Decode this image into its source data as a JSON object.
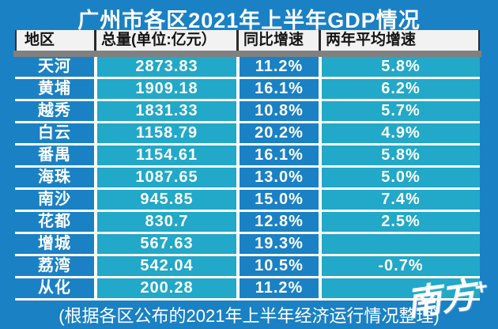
{
  "title": "广州市各区2021年上半年GDP情况",
  "table": {
    "columns": [
      "地区",
      "总量(单位:亿元）",
      "同比增速",
      "两年平均增速"
    ],
    "rows": [
      {
        "region": "天河",
        "total": "2873.83",
        "yoy": "11.2%",
        "two_year_avg": "5.8%"
      },
      {
        "region": "黄埔",
        "total": "1909.18",
        "yoy": "16.1%",
        "two_year_avg": "6.2%"
      },
      {
        "region": "越秀",
        "total": "1831.33",
        "yoy": "10.8%",
        "two_year_avg": "5.7%"
      },
      {
        "region": "白云",
        "total": "1158.79",
        "yoy": "20.2%",
        "two_year_avg": "4.9%"
      },
      {
        "region": "番禺",
        "total": "1154.61",
        "yoy": "16.1%",
        "two_year_avg": "5.8%"
      },
      {
        "region": "海珠",
        "total": "1087.65",
        "yoy": "13.0%",
        "two_year_avg": "5.0%"
      },
      {
        "region": "南沙",
        "total": "945.85",
        "yoy": "15.0%",
        "two_year_avg": "7.4%"
      },
      {
        "region": "花都",
        "total": "830.7",
        "yoy": "12.8%",
        "two_year_avg": "2.5%"
      },
      {
        "region": "增城",
        "total": "567.63",
        "yoy": "19.3%",
        "two_year_avg": ""
      },
      {
        "region": "荔湾",
        "total": "542.04",
        "yoy": "10.5%",
        "two_year_avg": "-0.7%"
      },
      {
        "region": "从化",
        "total": "200.28",
        "yoy": "11.2%",
        "two_year_avg": ""
      }
    ]
  },
  "footer_note": "(根据各区公布的2021年上半年经济运行情况整理)",
  "watermark": {
    "text": "南方",
    "plus": "+"
  },
  "colors": {
    "background_blue": "#1a81c5",
    "cell_teal": "#22a8c8",
    "header_bg": "#f2f2f2",
    "header_text": "#141414",
    "divider_gray": "#808080",
    "body_text": "#ffffff"
  },
  "chart_data": {
    "type": "table",
    "title": "广州市各区2021年上半年GDP情况",
    "columns": [
      "地区",
      "总量(单位:亿元）",
      "同比增速",
      "两年平均增速"
    ],
    "rows": [
      [
        "天河",
        2873.83,
        "11.2%",
        "5.8%"
      ],
      [
        "黄埔",
        1909.18,
        "16.1%",
        "6.2%"
      ],
      [
        "越秀",
        1831.33,
        "10.8%",
        "5.7%"
      ],
      [
        "白云",
        1158.79,
        "20.2%",
        "4.9%"
      ],
      [
        "番禺",
        1154.61,
        "16.1%",
        "5.8%"
      ],
      [
        "海珠",
        1087.65,
        "13.0%",
        "5.0%"
      ],
      [
        "南沙",
        945.85,
        "15.0%",
        "7.4%"
      ],
      [
        "花都",
        830.7,
        "12.8%",
        "2.5%"
      ],
      [
        "增城",
        567.63,
        "19.3%",
        ""
      ],
      [
        "荔湾",
        542.04,
        "10.5%",
        "-0.7%"
      ],
      [
        "从化",
        200.28,
        "11.2%",
        ""
      ]
    ],
    "note": "(根据各区公布的2021年上半年经济运行情况整理)"
  }
}
